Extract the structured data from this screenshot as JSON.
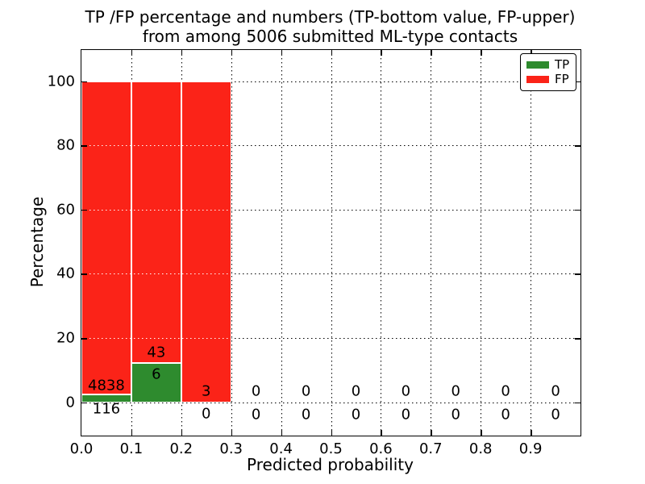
{
  "title": {
    "line1": "TP /FP percentage and numbers (TP-bottom value, FP-upper)",
    "line2": "from among 5006 submitted ML-type contacts"
  },
  "x_axis": {
    "label": "Predicted probability",
    "ticks": [
      "0.0",
      "0.1",
      "0.2",
      "0.3",
      "0.4",
      "0.5",
      "0.6",
      "0.7",
      "0.8",
      "0.9"
    ]
  },
  "y_axis": {
    "label": "Percentage",
    "ticks": [
      "0",
      "20",
      "40",
      "60",
      "80",
      "100"
    ]
  },
  "legend": {
    "items": [
      {
        "label": "TP",
        "color": "#2e8b2e"
      },
      {
        "label": "FP",
        "color": "#fb2318"
      }
    ]
  },
  "chart_data": {
    "type": "bar",
    "stacked": true,
    "title": "TP /FP percentage and numbers (TP-bottom value, FP-upper) from among 5006 submitted ML-type contacts",
    "xlabel": "Predicted probability",
    "ylabel": "Percentage",
    "total_contacts": 5006,
    "categories": [
      "0.0-0.1",
      "0.1-0.2",
      "0.2-0.3",
      "0.3-0.4",
      "0.4-0.5",
      "0.5-0.6",
      "0.6-0.7",
      "0.7-0.8",
      "0.8-0.9",
      "0.9-1.0"
    ],
    "bin_width": 0.1,
    "xlim": [
      0.0,
      1.0
    ],
    "ylim": [
      -10.4,
      109.7
    ],
    "x_tick_values": [
      0.0,
      0.1,
      0.2,
      0.3,
      0.4,
      0.5,
      0.6,
      0.7,
      0.8,
      0.9
    ],
    "y_tick_values": [
      0,
      20,
      40,
      60,
      80,
      100
    ],
    "grid": "dotted",
    "legend_position": "upper right",
    "series": [
      {
        "name": "TP",
        "color": "#2e8b2e",
        "counts": [
          116,
          6,
          0,
          0,
          0,
          0,
          0,
          0,
          0,
          0
        ],
        "pct": [
          2.3416,
          12.2449,
          0,
          0,
          0,
          0,
          0,
          0,
          0,
          0
        ]
      },
      {
        "name": "FP",
        "color": "#fb2318",
        "counts": [
          4838,
          43,
          3,
          0,
          0,
          0,
          0,
          0,
          0,
          0
        ],
        "pct": [
          97.6584,
          87.7551,
          100,
          0,
          0,
          0,
          0,
          0,
          0,
          0
        ]
      }
    ],
    "bar_labels": {
      "upper_text": [
        "4838",
        "43",
        "3",
        "0",
        "0",
        "0",
        "0",
        "0",
        "0",
        "0"
      ],
      "upper_y_pct": [
        5.3,
        15.4,
        3.3,
        3.3,
        3.3,
        3.3,
        3.3,
        3.3,
        3.3,
        3.3
      ],
      "lower_text": [
        "116",
        "6",
        "0",
        "0",
        "0",
        "0",
        "0",
        "0",
        "0",
        "0"
      ],
      "lower_y_pct": [
        -2.0,
        8.8,
        -3.5,
        -3.9,
        -3.9,
        -3.9,
        -3.9,
        -3.9,
        -3.9,
        -3.9
      ]
    }
  }
}
